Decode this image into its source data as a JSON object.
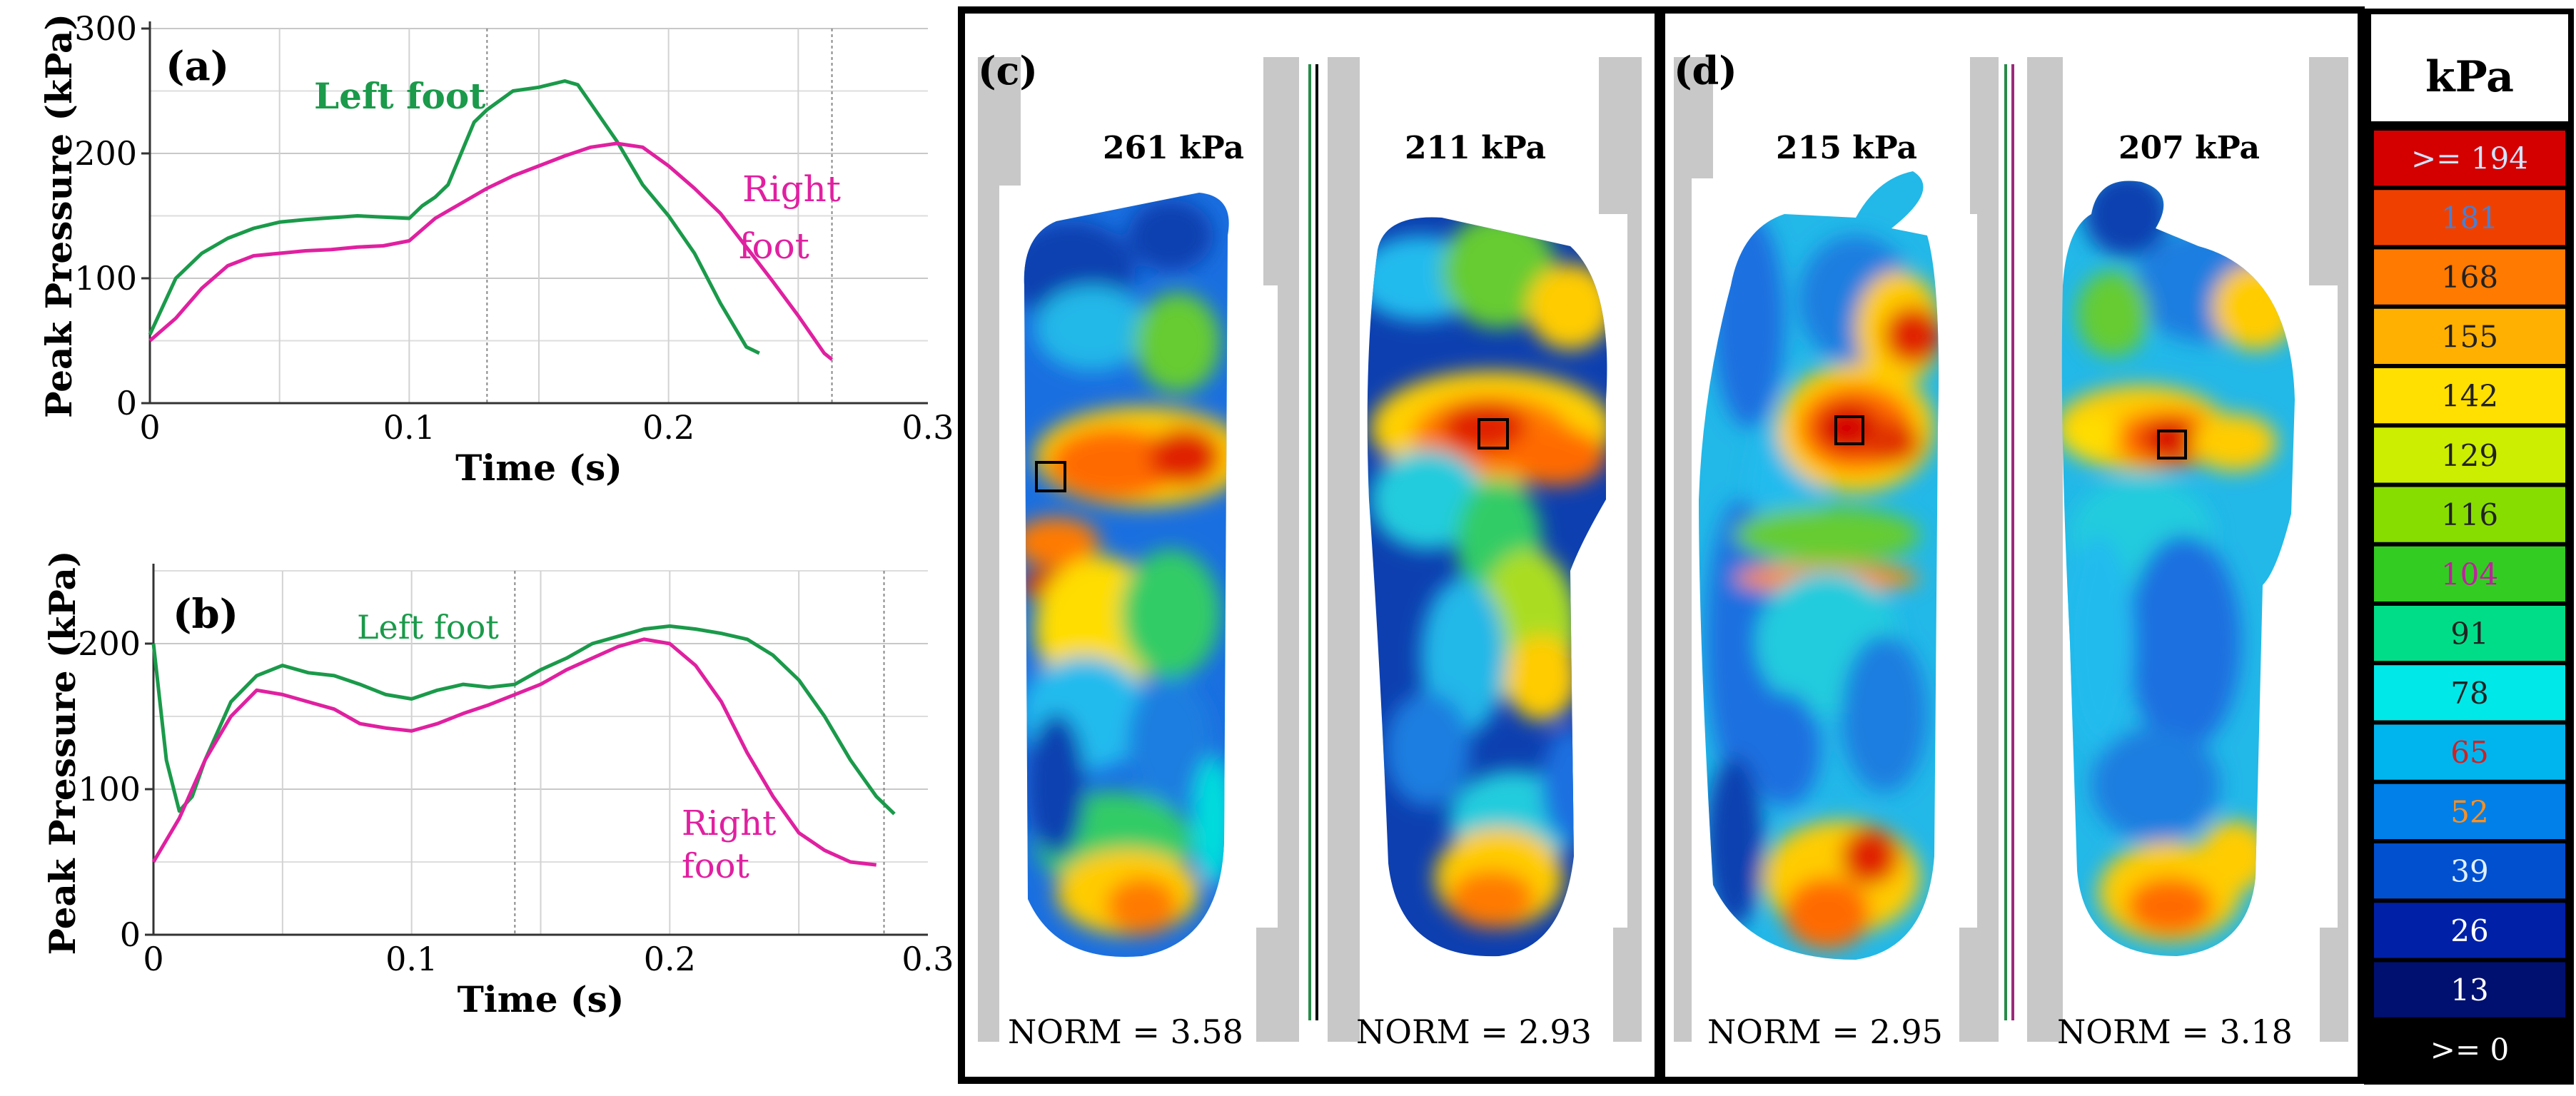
{
  "chart_data": [
    {
      "panel": "(a)",
      "type": "line",
      "title": "",
      "xlabel": "Time (s)",
      "ylabel": "Peak Pressure (kPa)",
      "xlim": [
        0,
        0.3
      ],
      "ylim": [
        0,
        300
      ],
      "xticks": [
        "0",
        "0.1",
        "0.2",
        "0.3"
      ],
      "yticks": [
        "0",
        "100",
        "200",
        "300"
      ],
      "vlines": [
        0.13,
        0.263
      ],
      "series": [
        {
          "name": "Left foot",
          "color": "#1a9a4a",
          "x": [
            0,
            0.01,
            0.02,
            0.03,
            0.04,
            0.05,
            0.06,
            0.08,
            0.09,
            0.1,
            0.105,
            0.11,
            0.115,
            0.12,
            0.125,
            0.13,
            0.14,
            0.15,
            0.16,
            0.165,
            0.17,
            0.18,
            0.19,
            0.2,
            0.21,
            0.22,
            0.23,
            0.235
          ],
          "y": [
            55,
            100,
            120,
            132,
            140,
            145,
            147,
            150,
            149,
            148,
            158,
            165,
            175,
            200,
            225,
            235,
            250,
            253,
            258,
            255,
            240,
            210,
            175,
            150,
            120,
            80,
            45,
            40
          ]
        },
        {
          "name": "Right foot",
          "color": "#e020a0",
          "x": [
            0,
            0.01,
            0.02,
            0.03,
            0.04,
            0.05,
            0.06,
            0.07,
            0.08,
            0.09,
            0.1,
            0.11,
            0.12,
            0.13,
            0.14,
            0.15,
            0.16,
            0.17,
            0.18,
            0.19,
            0.2,
            0.21,
            0.22,
            0.23,
            0.24,
            0.25,
            0.26,
            0.263
          ],
          "y": [
            50,
            68,
            92,
            110,
            118,
            120,
            122,
            123,
            125,
            126,
            130,
            148,
            160,
            172,
            182,
            190,
            198,
            205,
            208,
            205,
            190,
            172,
            152,
            125,
            98,
            70,
            40,
            35
          ]
        }
      ]
    },
    {
      "panel": "(b)",
      "type": "line",
      "title": "",
      "xlabel": "Time (s)",
      "ylabel": "Peak Pressure (kPa)",
      "xlim": [
        0,
        0.3
      ],
      "ylim": [
        0,
        250
      ],
      "xticks": [
        "0",
        "0.1",
        "0.2",
        "0.3"
      ],
      "yticks": [
        "0",
        "100",
        "200"
      ],
      "vlines": [
        0.14,
        0.283
      ],
      "series": [
        {
          "name": "Left foot",
          "color": "#1a9a4a",
          "x": [
            0,
            0.005,
            0.01,
            0.015,
            0.02,
            0.03,
            0.04,
            0.05,
            0.06,
            0.07,
            0.08,
            0.09,
            0.1,
            0.11,
            0.12,
            0.13,
            0.14,
            0.15,
            0.16,
            0.17,
            0.18,
            0.19,
            0.2,
            0.21,
            0.22,
            0.23,
            0.24,
            0.25,
            0.26,
            0.27,
            0.28,
            0.287
          ],
          "y": [
            200,
            120,
            85,
            95,
            120,
            160,
            178,
            185,
            180,
            178,
            172,
            165,
            162,
            168,
            172,
            170,
            172,
            182,
            190,
            200,
            205,
            210,
            212,
            210,
            207,
            203,
            192,
            175,
            150,
            120,
            95,
            83
          ]
        },
        {
          "name": "Right foot",
          "color": "#e020a0",
          "x": [
            0,
            0.01,
            0.02,
            0.03,
            0.04,
            0.05,
            0.06,
            0.07,
            0.08,
            0.09,
            0.1,
            0.11,
            0.12,
            0.13,
            0.14,
            0.15,
            0.16,
            0.17,
            0.18,
            0.19,
            0.2,
            0.21,
            0.22,
            0.23,
            0.24,
            0.25,
            0.26,
            0.27,
            0.28
          ],
          "y": [
            50,
            80,
            120,
            150,
            168,
            165,
            160,
            155,
            145,
            142,
            140,
            145,
            152,
            158,
            165,
            172,
            182,
            190,
            198,
            203,
            200,
            185,
            160,
            125,
            95,
            70,
            58,
            50,
            48
          ]
        }
      ]
    },
    {
      "type": "heatmap",
      "description_only": false,
      "unit": "kPa",
      "colorbar": {
        "labels": [
          ">= 194",
          "181",
          "168",
          "155",
          "142",
          "129",
          "116",
          "104",
          "91",
          "78",
          "65",
          "52",
          "39",
          "26",
          "13",
          ">= 0"
        ],
        "colors": [
          "#d40000",
          "#f04000",
          "#ff7a00",
          "#ffb000",
          "#ffe000",
          "#ccee00",
          "#88dd00",
          "#33cc22",
          "#00dd88",
          "#00e8e8",
          "#00b4ee",
          "#0080e8",
          "#0050d0",
          "#0020a8",
          "#001070",
          "#000000"
        ],
        "text_colors": [
          "#d0e4ff",
          "#4a7fd0",
          "#222222",
          "#222222",
          "#222222",
          "#222222",
          "#222222",
          "#c020a0",
          "#222222",
          "#222222",
          "#d02020",
          "#ff9020",
          "#e0f0ff",
          "#ffffff",
          "#ffffff",
          "#ffffff"
        ]
      },
      "panels": [
        {
          "label": "(c)",
          "footprints": [
            {
              "peak": "261 kPa",
              "norm": "NORM = 3.58"
            },
            {
              "peak": "211 kPa",
              "norm": "NORM = 2.93"
            }
          ]
        },
        {
          "label": "(d)",
          "footprints": [
            {
              "peak": "215 kPa",
              "norm": "NORM = 2.95"
            },
            {
              "peak": "207 kPa",
              "norm": "NORM = 3.18"
            }
          ]
        }
      ]
    }
  ],
  "labels": {
    "a": "(a)",
    "b": "(b)",
    "c": "(c)",
    "d": "(d)",
    "a_left": "Left foot",
    "a_right_1": "Right",
    "a_right_2": "foot",
    "b_left": "Left foot",
    "b_right_1": "Right",
    "b_right_2": "foot"
  }
}
